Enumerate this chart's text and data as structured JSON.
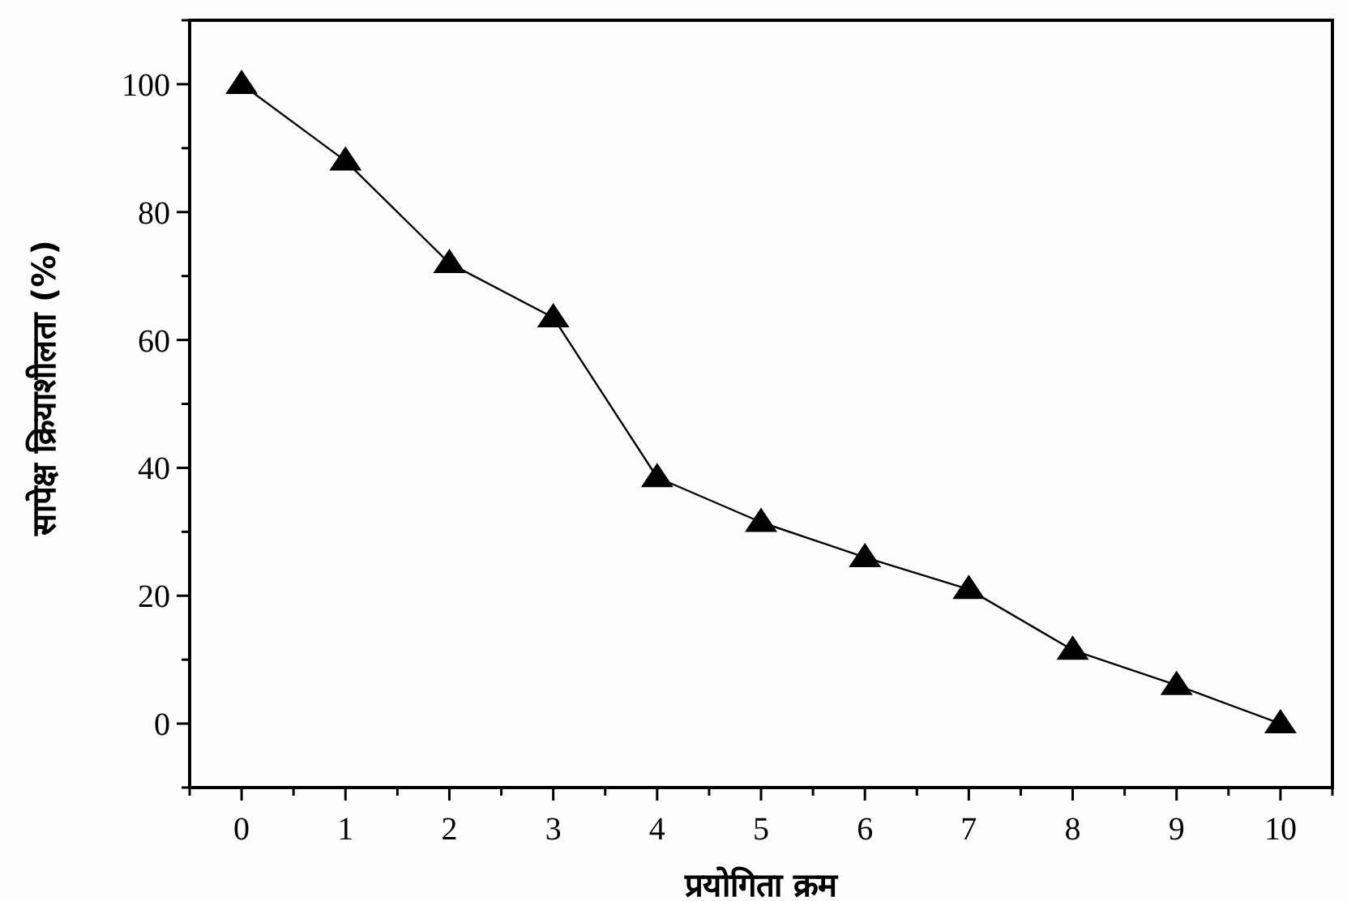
{
  "chart_data": {
    "type": "line",
    "xlabel": "प्रयोगिता क्रम",
    "ylabel": "सापेक्ष क्रियाशीलता (%)",
    "x": [
      0,
      1,
      2,
      3,
      4,
      5,
      6,
      7,
      8,
      9,
      10
    ],
    "series": [
      {
        "color": "#000000",
        "values": [
          100,
          88,
          72,
          63.5,
          38.5,
          31.5,
          26,
          21,
          11.5,
          6,
          0
        ]
      }
    ],
    "marker": "triangle",
    "line_style": "solid",
    "xlim": [
      -0.5,
      10.5
    ],
    "xticks": [
      {
        "value": -0.5,
        "label": null
      },
      0,
      {
        "value": 0.5,
        "label": null
      },
      1,
      {
        "value": 1.5,
        "label": null
      },
      2,
      {
        "value": 2.5,
        "label": null
      },
      3,
      {
        "value": 3.5,
        "label": null
      },
      4,
      {
        "value": 4.5,
        "label": null
      },
      5,
      {
        "value": 5.5,
        "label": null
      },
      6,
      {
        "value": 6.5,
        "label": null
      },
      7,
      {
        "value": 7.5,
        "label": null
      },
      8,
      {
        "value": 8.5,
        "label": null
      },
      9,
      {
        "value": 9.5,
        "label": null
      },
      10,
      {
        "value": 10.5,
        "label": null
      }
    ],
    "ylim": [
      -10,
      110
    ],
    "yticks": [
      {
        "value": -10,
        "label": null
      },
      0,
      {
        "value": 10,
        "label": null
      },
      20,
      {
        "value": 30,
        "label": null
      },
      40,
      {
        "value": 50,
        "label": null
      },
      60,
      {
        "value": 70,
        "label": null
      },
      80,
      {
        "value": 90,
        "label": null
      },
      100,
      {
        "value": 110,
        "label": null
      }
    ],
    "grid": false
  }
}
